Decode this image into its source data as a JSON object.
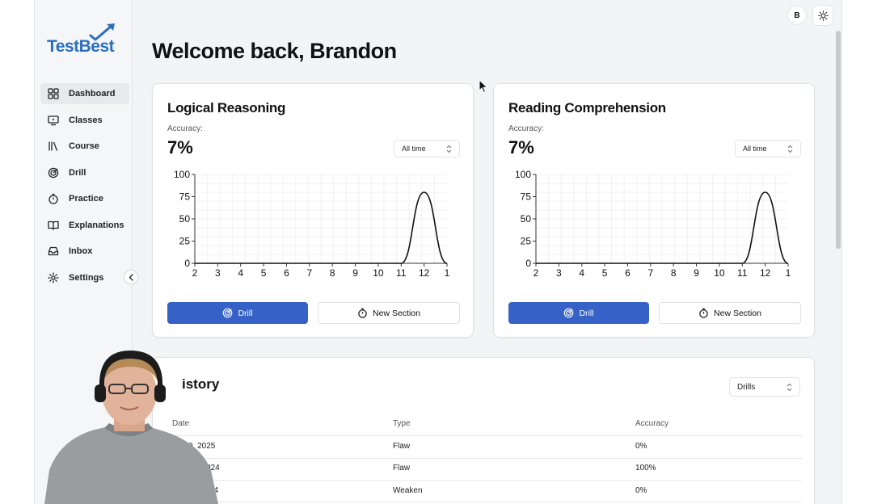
{
  "brand": {
    "name": "TestBest",
    "accent": "#2d6fbf"
  },
  "sidebar": {
    "items": [
      {
        "label": "Dashboard",
        "icon": "grid-icon",
        "active": true
      },
      {
        "label": "Classes",
        "icon": "monitor-play-icon"
      },
      {
        "label": "Course",
        "icon": "library-icon"
      },
      {
        "label": "Drill",
        "icon": "target-icon"
      },
      {
        "label": "Practice",
        "icon": "timer-icon"
      },
      {
        "label": "Explanations",
        "icon": "book-open-icon"
      },
      {
        "label": "Inbox",
        "icon": "inbox-icon"
      },
      {
        "label": "Settings",
        "icon": "gear-icon"
      }
    ],
    "collapse_icon": "chevron-left-icon"
  },
  "topbar": {
    "avatar_initial": "B",
    "theme_icon": "sun-icon"
  },
  "header": {
    "welcome": "Welcome back, Brandon"
  },
  "cards": [
    {
      "title": "Logical Reasoning",
      "accuracy_label": "Accuracy:",
      "accuracy_value": "7%",
      "range_select": "All time",
      "drill_label": "Drill",
      "new_section_label": "New Section"
    },
    {
      "title": "Reading Comprehension",
      "accuracy_label": "Accuracy:",
      "accuracy_value": "7%",
      "range_select": "All time",
      "drill_label": "Drill",
      "new_section_label": "New Section"
    }
  ],
  "chart_data": [
    {
      "type": "line",
      "title": "",
      "xlabel": "",
      "ylabel": "",
      "categories": [
        "2",
        "3",
        "4",
        "5",
        "6",
        "7",
        "8",
        "9",
        "10",
        "11",
        "12",
        "1"
      ],
      "values": [
        0,
        0,
        0,
        0,
        0,
        0,
        0,
        0,
        0,
        0,
        80,
        0
      ],
      "yticks": [
        0,
        25,
        50,
        75,
        100
      ],
      "ylim": [
        0,
        100
      ],
      "grid": true
    },
    {
      "type": "line",
      "title": "",
      "xlabel": "",
      "ylabel": "",
      "categories": [
        "2",
        "3",
        "4",
        "5",
        "6",
        "7",
        "8",
        "9",
        "10",
        "11",
        "12",
        "1"
      ],
      "values": [
        0,
        0,
        0,
        0,
        0,
        0,
        0,
        0,
        0,
        0,
        80,
        0
      ],
      "yticks": [
        0,
        25,
        50,
        75,
        100
      ],
      "ylim": [
        0,
        100
      ],
      "grid": true
    }
  ],
  "history": {
    "title": "History",
    "visible_title_fragment": "istory",
    "filter_select": "Drills",
    "columns": [
      "Date",
      "Type",
      "Accuracy"
    ],
    "rows": [
      {
        "date": "9, 2025",
        "type": "Flaw",
        "accuracy": "0%"
      },
      {
        "date": "024",
        "type": "Flaw",
        "accuracy": "100%"
      },
      {
        "date": "24",
        "type": "Weaken",
        "accuracy": "0%"
      }
    ]
  },
  "colors": {
    "primary_button": "#3662c8",
    "background": "#f3f4f5"
  }
}
